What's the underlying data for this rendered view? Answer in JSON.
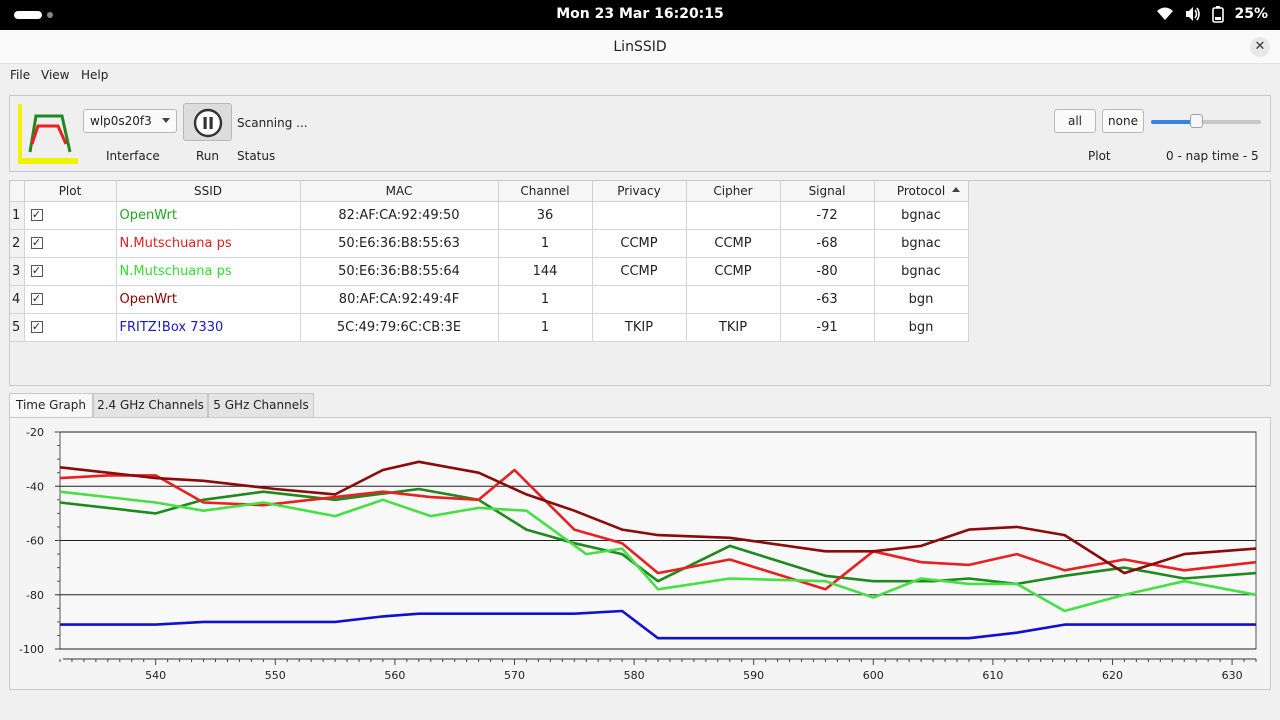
{
  "system": {
    "clock": "Mon 23 Mar  16:20:15",
    "battery": "25%"
  },
  "window": {
    "title": "LinSSID"
  },
  "menu": [
    "File",
    "View",
    "Help"
  ],
  "toolbar": {
    "interface_value": "wlp0s20f3",
    "interface_label": "Interface",
    "run_label": "Run",
    "status_value": "Scanning ...",
    "status_label": "Status",
    "all_label": "all",
    "none_label": "none",
    "plot_label": "Plot",
    "nap_label": "0 - nap time - 5",
    "nap_fraction": 0.4
  },
  "table": {
    "columns": [
      "Plot",
      "SSID",
      "MAC",
      "Channel",
      "Privacy",
      "Cipher",
      "Signal",
      "Protocol"
    ],
    "rows": [
      {
        "num": "1",
        "checked": true,
        "ssid": "OpenWrt",
        "color": "#1fa91f",
        "mac": "82:AF:CA:92:49:50",
        "channel": "36",
        "privacy": "",
        "cipher": "",
        "signal": "-72",
        "protocol": "bgnac"
      },
      {
        "num": "2",
        "checked": true,
        "ssid": "N.Mutschuana ps",
        "color": "#e02020",
        "mac": "50:E6:36:B8:55:63",
        "channel": "1",
        "privacy": "CCMP",
        "cipher": "CCMP",
        "signal": "-68",
        "protocol": "bgnac"
      },
      {
        "num": "3",
        "checked": true,
        "ssid": "N.Mutschuana ps",
        "color": "#33dd33",
        "mac": "50:E6:36:B8:55:64",
        "channel": "144",
        "privacy": "CCMP",
        "cipher": "CCMP",
        "signal": "-80",
        "protocol": "bgnac"
      },
      {
        "num": "4",
        "checked": true,
        "ssid": "OpenWrt",
        "color": "#8b0000",
        "mac": "80:AF:CA:92:49:4F",
        "channel": "1",
        "privacy": "",
        "cipher": "",
        "signal": "-63",
        "protocol": "bgn"
      },
      {
        "num": "5",
        "checked": true,
        "ssid": "FRITZ!Box 7330",
        "color": "#1818c8",
        "mac": "5C:49:79:6C:CB:3E",
        "channel": "1",
        "privacy": "TKIP",
        "cipher": "TKIP",
        "signal": "-91",
        "protocol": "bgn"
      }
    ]
  },
  "tabs": [
    "Time Graph",
    "2.4 GHz Channels",
    "5 GHz Channels"
  ],
  "active_tab": 0,
  "chart_data": {
    "type": "line",
    "title": "",
    "xlabel": "",
    "ylabel": "",
    "xlim": [
      532,
      632
    ],
    "ylim": [
      -100,
      -20
    ],
    "xticks": [
      540,
      550,
      560,
      570,
      580,
      590,
      600,
      610,
      620,
      630
    ],
    "yticks": [
      -20,
      -40,
      -60,
      -80,
      -100
    ],
    "grid": true,
    "series": [
      {
        "name": "OpenWrt",
        "color": "#1e8a1e",
        "x": [
          532,
          540,
          544,
          549,
          555,
          562,
          567,
          571,
          575,
          579,
          582,
          588,
          596,
          600,
          605,
          608,
          612,
          616,
          621,
          626,
          632
        ],
        "y": [
          -46,
          -50,
          -45,
          -42,
          -45,
          -41,
          -45,
          -56,
          -61,
          -65,
          -75,
          -62,
          -73,
          -75,
          -75,
          -74,
          -76,
          -73,
          -70,
          -74,
          -72
        ]
      },
      {
        "name": "N.Mutschuana ps",
        "color": "#e82020",
        "x": [
          532,
          536,
          540,
          544,
          549,
          555,
          559,
          563,
          567,
          570,
          575,
          579,
          582,
          588,
          596,
          600,
          604,
          608,
          612,
          616,
          621,
          626,
          632
        ],
        "y": [
          -37,
          -36,
          -36,
          -46,
          -47,
          -44,
          -42,
          -44,
          -45,
          -34,
          -56,
          -61,
          -72,
          -67,
          -78,
          -64,
          -68,
          -69,
          -65,
          -71,
          -67,
          -71,
          -68
        ]
      },
      {
        "name": "N.Mutschuana ps",
        "color": "#44e044",
        "x": [
          532,
          540,
          544,
          549,
          555,
          559,
          563,
          567,
          571,
          576,
          579,
          582,
          588,
          596,
          600,
          604,
          608,
          612,
          616,
          621,
          626,
          632
        ],
        "y": [
          -42,
          -46,
          -49,
          -46,
          -51,
          -45,
          -51,
          -48,
          -49,
          -65,
          -63,
          -78,
          -74,
          -75,
          -81,
          -74,
          -76,
          -76,
          -86,
          -80,
          -75,
          -80
        ]
      },
      {
        "name": "OpenWrt",
        "color": "#8b0a0a",
        "x": [
          532,
          540,
          544,
          550,
          555,
          559,
          562,
          567,
          571,
          575,
          579,
          582,
          588,
          596,
          600,
          604,
          608,
          612,
          616,
          621,
          626,
          632
        ],
        "y": [
          -33,
          -37,
          -38,
          -41,
          -43,
          -34,
          -31,
          -35,
          -43,
          -49,
          -56,
          -58,
          -59,
          -64,
          -64,
          -62,
          -56,
          -55,
          -58,
          -72,
          -65,
          -63
        ]
      },
      {
        "name": "FRITZ!Box 7330",
        "color": "#1010d0",
        "x": [
          532,
          540,
          544,
          555,
          559,
          562,
          570,
          575,
          579,
          582,
          590,
          600,
          608,
          612,
          616,
          621,
          632
        ],
        "y": [
          -91,
          -91,
          -90,
          -90,
          -88,
          -87,
          -87,
          -87,
          -86,
          -96,
          -96,
          -96,
          -96,
          -94,
          -91,
          -91,
          -91
        ]
      }
    ]
  }
}
